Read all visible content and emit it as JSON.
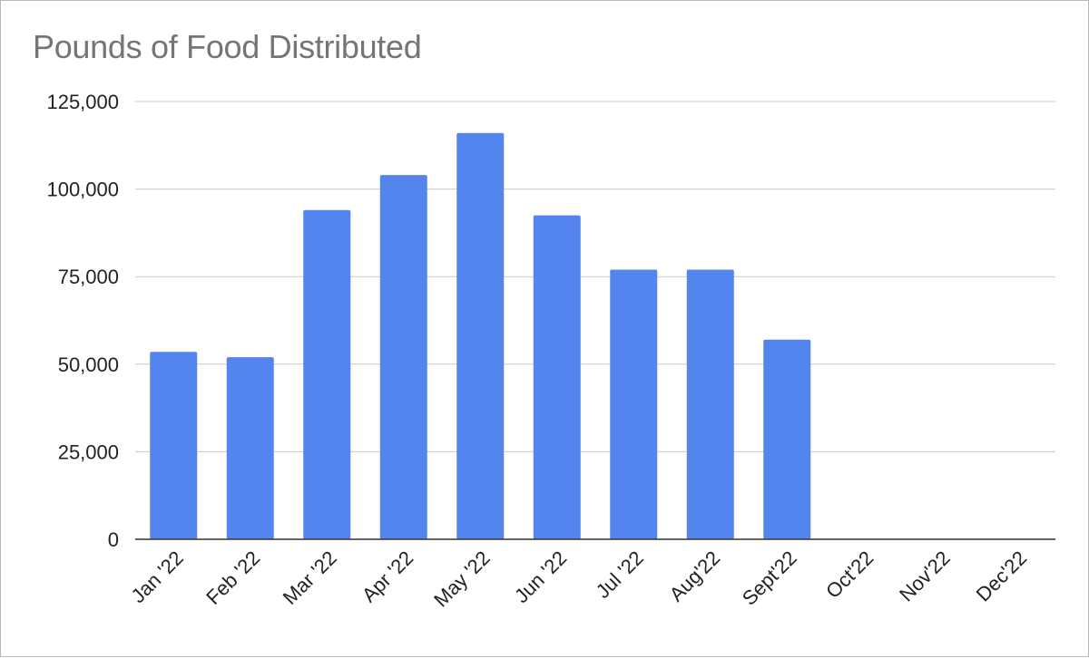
{
  "chart_data": {
    "type": "bar",
    "title": "Pounds of Food Distributed",
    "xlabel": "",
    "ylabel": "",
    "categories": [
      "Jan '22",
      "Feb '22",
      "Mar '22",
      "Apr '22",
      "May '22",
      "Jun '22",
      "Jul '22",
      "Aug'22",
      "Sept'22",
      "Oct'22",
      "Nov'22",
      "Dec'22"
    ],
    "values": [
      53500,
      52000,
      94000,
      104000,
      116000,
      92500,
      77000,
      77000,
      57000,
      0,
      0,
      0
    ],
    "ylim": [
      0,
      125000
    ],
    "yticks": [
      0,
      25000,
      50000,
      75000,
      100000,
      125000
    ],
    "ytick_labels": [
      "0",
      "25,000",
      "50,000",
      "75,000",
      "100,000",
      "125,000"
    ],
    "grid": true,
    "legend": "none",
    "bar_color": "#5484ed"
  }
}
